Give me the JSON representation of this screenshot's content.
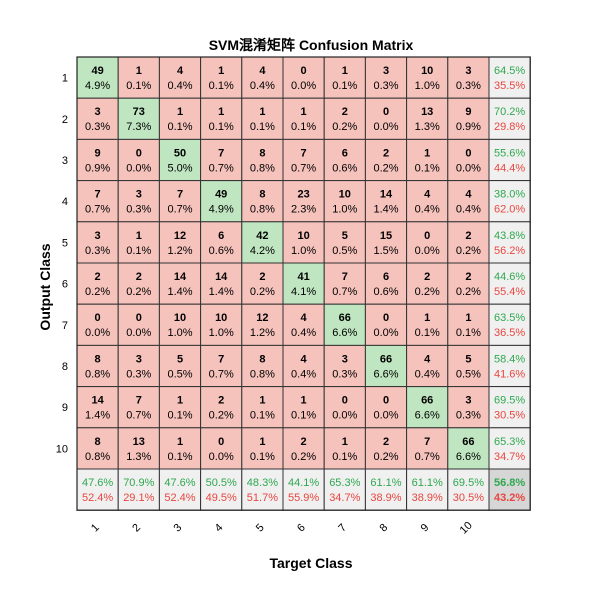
{
  "chart_data": {
    "type": "heatmap",
    "title": "SVM混淆矩阵 Confusion Matrix",
    "xlabel": "Target Class",
    "ylabel": "Output Class",
    "row_labels": [
      "1",
      "2",
      "3",
      "4",
      "5",
      "6",
      "7",
      "8",
      "9",
      "10"
    ],
    "col_labels": [
      "1",
      "2",
      "3",
      "4",
      "5",
      "6",
      "7",
      "8",
      "9",
      "10"
    ],
    "counts": [
      [
        49,
        1,
        4,
        1,
        4,
        0,
        1,
        3,
        10,
        3
      ],
      [
        3,
        73,
        1,
        1,
        1,
        1,
        2,
        0,
        13,
        9
      ],
      [
        9,
        0,
        50,
        7,
        8,
        7,
        6,
        2,
        1,
        0
      ],
      [
        7,
        3,
        7,
        49,
        8,
        23,
        10,
        14,
        4,
        4
      ],
      [
        3,
        1,
        12,
        6,
        42,
        10,
        5,
        15,
        0,
        2
      ],
      [
        2,
        2,
        14,
        14,
        2,
        41,
        7,
        6,
        2,
        2
      ],
      [
        0,
        0,
        10,
        10,
        12,
        4,
        66,
        0,
        1,
        1
      ],
      [
        8,
        3,
        5,
        7,
        8,
        4,
        3,
        66,
        4,
        5
      ],
      [
        14,
        7,
        1,
        2,
        1,
        1,
        0,
        0,
        66,
        3
      ],
      [
        8,
        13,
        1,
        0,
        1,
        2,
        1,
        2,
        7,
        66
      ]
    ],
    "cell_percent": [
      [
        "4.9%",
        "0.1%",
        "0.4%",
        "0.1%",
        "0.4%",
        "0.0%",
        "0.1%",
        "0.3%",
        "1.0%",
        "0.3%"
      ],
      [
        "0.3%",
        "7.3%",
        "0.1%",
        "0.1%",
        "0.1%",
        "0.1%",
        "0.2%",
        "0.0%",
        "1.3%",
        "0.9%"
      ],
      [
        "0.9%",
        "0.0%",
        "5.0%",
        "0.7%",
        "0.8%",
        "0.7%",
        "0.6%",
        "0.2%",
        "0.1%",
        "0.0%"
      ],
      [
        "0.7%",
        "0.3%",
        "0.7%",
        "4.9%",
        "0.8%",
        "2.3%",
        "1.0%",
        "1.4%",
        "0.4%",
        "0.4%"
      ],
      [
        "0.3%",
        "0.1%",
        "1.2%",
        "0.6%",
        "4.2%",
        "1.0%",
        "0.5%",
        "1.5%",
        "0.0%",
        "0.2%"
      ],
      [
        "0.2%",
        "0.2%",
        "1.4%",
        "1.4%",
        "0.2%",
        "4.1%",
        "0.7%",
        "0.6%",
        "0.2%",
        "0.2%"
      ],
      [
        "0.0%",
        "0.0%",
        "1.0%",
        "1.0%",
        "1.2%",
        "0.4%",
        "6.6%",
        "0.0%",
        "0.1%",
        "0.1%"
      ],
      [
        "0.8%",
        "0.3%",
        "0.5%",
        "0.7%",
        "0.8%",
        "0.4%",
        "0.3%",
        "6.6%",
        "0.4%",
        "0.5%"
      ],
      [
        "1.4%",
        "0.7%",
        "0.1%",
        "0.2%",
        "0.1%",
        "0.1%",
        "0.0%",
        "0.0%",
        "6.6%",
        "0.3%"
      ],
      [
        "0.8%",
        "1.3%",
        "0.1%",
        "0.0%",
        "0.1%",
        "0.2%",
        "0.1%",
        "0.2%",
        "0.7%",
        "6.6%"
      ]
    ],
    "row_summary": [
      [
        "64.5%",
        "35.5%"
      ],
      [
        "70.2%",
        "29.8%"
      ],
      [
        "55.6%",
        "44.4%"
      ],
      [
        "38.0%",
        "62.0%"
      ],
      [
        "43.8%",
        "56.2%"
      ],
      [
        "44.6%",
        "55.4%"
      ],
      [
        "63.5%",
        "36.5%"
      ],
      [
        "58.4%",
        "41.6%"
      ],
      [
        "69.5%",
        "30.5%"
      ],
      [
        "65.3%",
        "34.7%"
      ]
    ],
    "col_summary": [
      [
        "47.6%",
        "52.4%"
      ],
      [
        "70.9%",
        "29.1%"
      ],
      [
        "47.6%",
        "52.4%"
      ],
      [
        "50.5%",
        "49.5%"
      ],
      [
        "48.3%",
        "51.7%"
      ],
      [
        "44.1%",
        "55.9%"
      ],
      [
        "65.3%",
        "34.7%"
      ],
      [
        "61.1%",
        "38.9%"
      ],
      [
        "61.1%",
        "38.9%"
      ],
      [
        "69.5%",
        "30.5%"
      ]
    ],
    "overall": [
      "56.8%",
      "43.2%"
    ],
    "colors": {
      "diagonal": "#bfe6c0",
      "off_diagonal": "#f5c2bc",
      "summary": "#f0f0f0",
      "overall": "#d6d6d6",
      "correct_text": "#2fa84f",
      "error_text": "#e8463f",
      "grid": "#333333"
    },
    "grid": true
  }
}
